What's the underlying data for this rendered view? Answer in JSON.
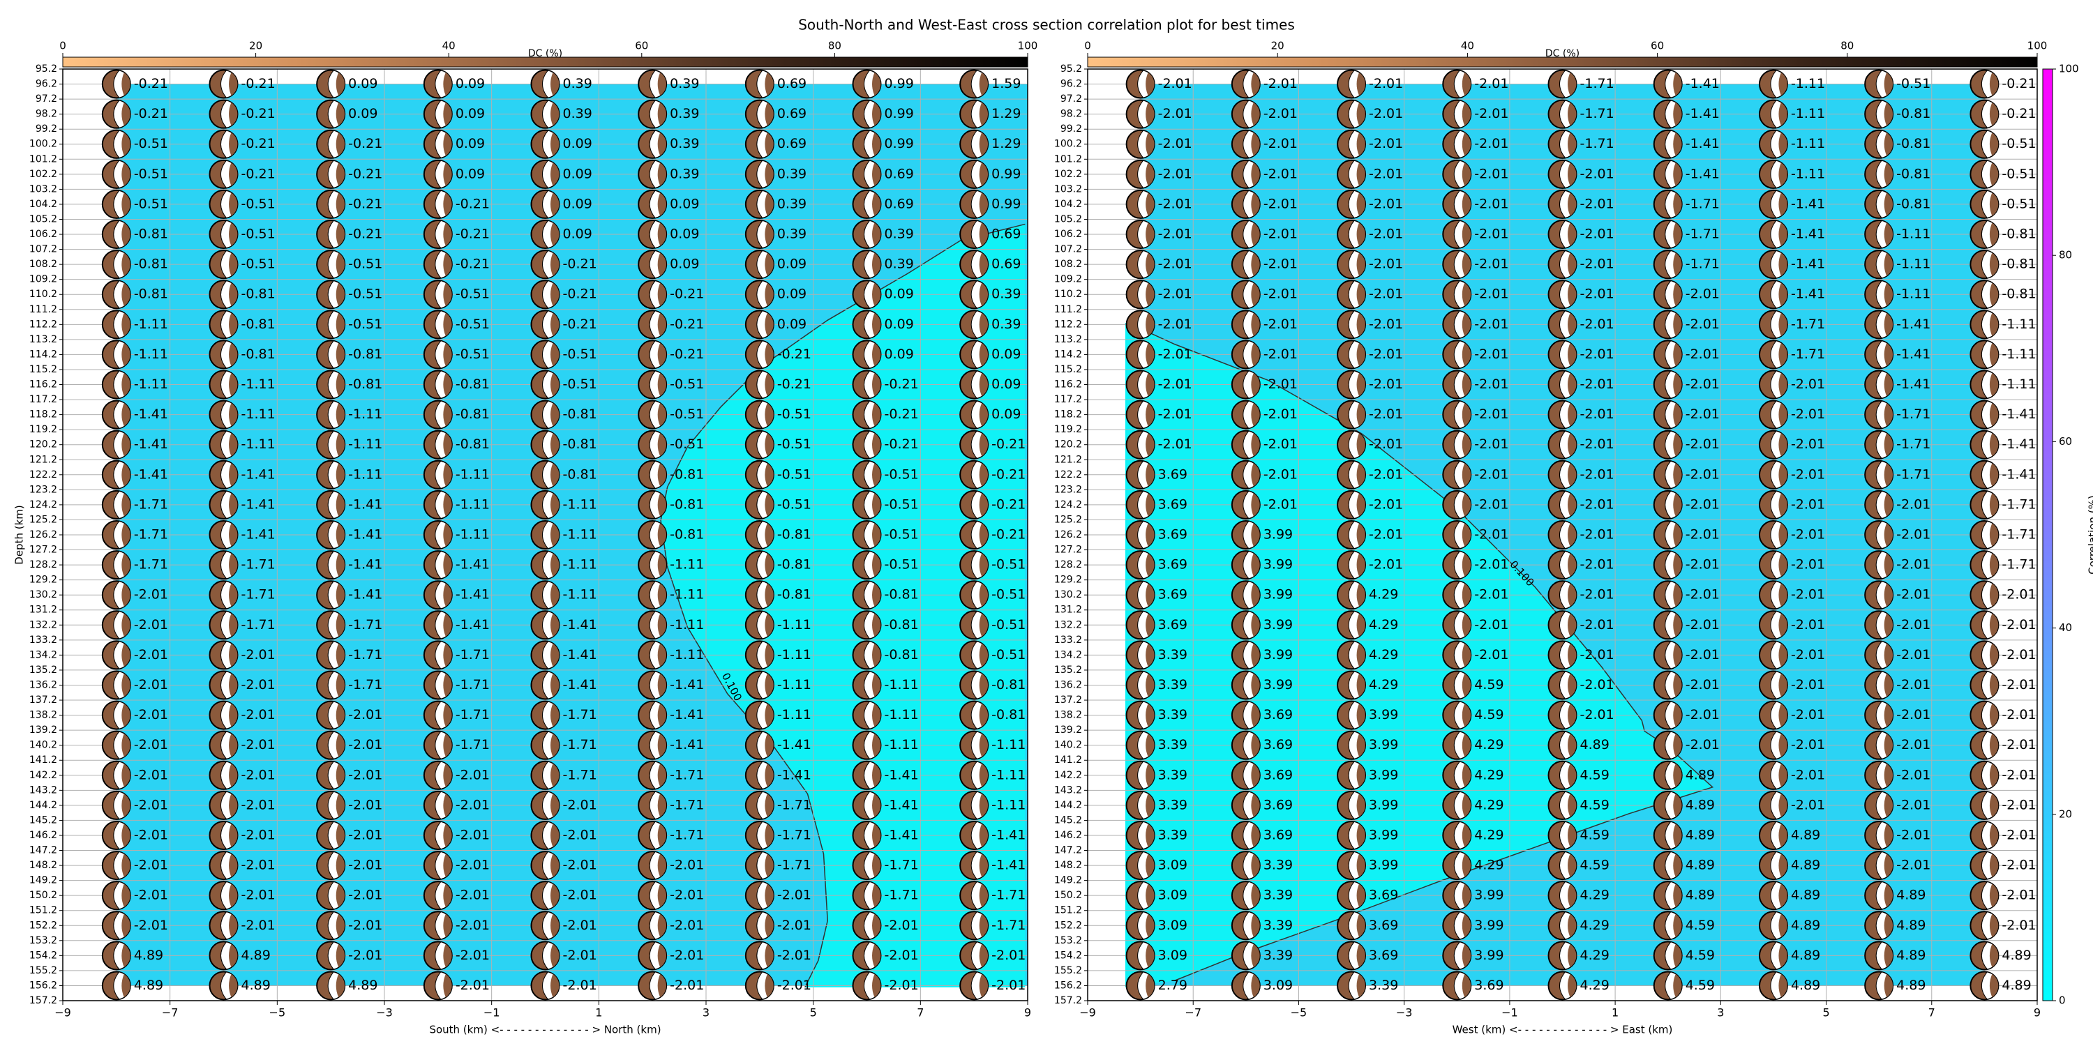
{
  "title": "South-North and West-East cross section correlation plot for best times",
  "chart_data": [
    {
      "type": "beachball",
      "xlabel": "South (km) <- - - - - - - - - - - - - > North (km)",
      "ylabel": "Depth (km)",
      "xlim": [
        -9,
        9
      ],
      "ylim": [
        157.2,
        95.2
      ],
      "xticks": [
        {
          "value": -9,
          "label": "−9"
        },
        {
          "value": -7,
          "label": "−7"
        },
        {
          "value": -5,
          "label": "−5"
        },
        {
          "value": -3,
          "label": "−3"
        },
        {
          "value": -1,
          "label": "−1"
        },
        1,
        3,
        5,
        7,
        9
      ],
      "yticks": [
        95.2,
        96.2,
        97.2,
        98.2,
        99.2,
        100.2,
        101.2,
        102.2,
        103.2,
        104.2,
        105.2,
        106.2,
        107.2,
        108.2,
        109.2,
        110.2,
        111.2,
        112.2,
        113.2,
        114.2,
        115.2,
        116.2,
        117.2,
        118.2,
        119.2,
        120.2,
        121.2,
        122.2,
        123.2,
        124.2,
        125.2,
        126.2,
        127.2,
        128.2,
        129.2,
        130.2,
        131.2,
        132.2,
        133.2,
        134.2,
        135.2,
        136.2,
        137.2,
        138.2,
        139.2,
        140.2,
        141.2,
        142.2,
        143.2,
        144.2,
        145.2,
        146.2,
        147.2,
        148.2,
        149.2,
        150.2,
        151.2,
        152.2,
        153.2,
        154.2,
        155.2,
        156.2,
        157.2
      ],
      "grid": true,
      "x": [
        -8,
        -6,
        -4,
        -2,
        0,
        2,
        4,
        6,
        8
      ],
      "depths": [
        96.2,
        98.2,
        100.2,
        102.2,
        104.2,
        106.2,
        108.2,
        110.2,
        112.2,
        114.2,
        116.2,
        118.2,
        120.2,
        122.2,
        124.2,
        126.2,
        128.2,
        130.2,
        132.2,
        134.2,
        136.2,
        138.2,
        140.2,
        142.2,
        144.2,
        146.2,
        148.2,
        150.2,
        152.2,
        154.2,
        156.2
      ],
      "values": [
        [
          -0.21,
          -0.21,
          0.09,
          0.09,
          0.39,
          0.39,
          0.69,
          0.99,
          1.59
        ],
        [
          -0.21,
          -0.21,
          0.09,
          0.09,
          0.39,
          0.39,
          0.69,
          0.99,
          1.29
        ],
        [
          -0.51,
          -0.21,
          -0.21,
          0.09,
          0.09,
          0.39,
          0.69,
          0.99,
          1.29
        ],
        [
          -0.51,
          -0.21,
          -0.21,
          0.09,
          0.09,
          0.39,
          0.39,
          0.69,
          0.99
        ],
        [
          -0.51,
          -0.51,
          -0.21,
          -0.21,
          0.09,
          0.09,
          0.39,
          0.69,
          0.99
        ],
        [
          -0.81,
          -0.51,
          -0.21,
          -0.21,
          0.09,
          0.09,
          0.39,
          0.39,
          0.69
        ],
        [
          -0.81,
          -0.51,
          -0.51,
          -0.21,
          -0.21,
          0.09,
          0.09,
          0.39,
          0.69
        ],
        [
          -0.81,
          -0.81,
          -0.51,
          -0.51,
          -0.21,
          -0.21,
          0.09,
          0.09,
          0.39
        ],
        [
          -1.11,
          -0.81,
          -0.51,
          -0.51,
          -0.21,
          -0.21,
          0.09,
          0.09,
          0.39
        ],
        [
          -1.11,
          -0.81,
          -0.81,
          -0.51,
          -0.51,
          -0.21,
          -0.21,
          0.09,
          0.09
        ],
        [
          -1.11,
          -1.11,
          -0.81,
          -0.81,
          -0.51,
          -0.51,
          -0.21,
          -0.21,
          0.09
        ],
        [
          -1.41,
          -1.11,
          -1.11,
          -0.81,
          -0.81,
          -0.51,
          -0.51,
          -0.21,
          0.09
        ],
        [
          -1.41,
          -1.11,
          -1.11,
          -0.81,
          -0.81,
          -0.51,
          -0.51,
          -0.21,
          -0.21
        ],
        [
          -1.41,
          -1.41,
          -1.11,
          -1.11,
          -0.81,
          -0.81,
          -0.51,
          -0.51,
          -0.21
        ],
        [
          -1.71,
          -1.41,
          -1.41,
          -1.11,
          -1.11,
          -0.81,
          -0.51,
          -0.51,
          -0.21
        ],
        [
          -1.71,
          -1.41,
          -1.41,
          -1.11,
          -1.11,
          -0.81,
          -0.81,
          -0.51,
          -0.21
        ],
        [
          -1.71,
          -1.71,
          -1.41,
          -1.41,
          -1.11,
          -1.11,
          -0.81,
          -0.51,
          -0.51
        ],
        [
          -2.01,
          -1.71,
          -1.41,
          -1.41,
          -1.11,
          -1.11,
          -0.81,
          -0.81,
          -0.51
        ],
        [
          -2.01,
          -1.71,
          -1.71,
          -1.41,
          -1.41,
          -1.11,
          -1.11,
          -0.81,
          -0.51
        ],
        [
          -2.01,
          -2.01,
          -1.71,
          -1.71,
          -1.41,
          -1.11,
          -1.11,
          -0.81,
          -0.51
        ],
        [
          -2.01,
          -2.01,
          -1.71,
          -1.71,
          -1.41,
          -1.41,
          -1.11,
          -1.11,
          -0.81
        ],
        [
          -2.01,
          -2.01,
          -2.01,
          -1.71,
          -1.71,
          -1.41,
          -1.11,
          -1.11,
          -0.81
        ],
        [
          -2.01,
          -2.01,
          -2.01,
          -1.71,
          -1.71,
          -1.41,
          -1.41,
          -1.11,
          -1.11
        ],
        [
          -2.01,
          -2.01,
          -2.01,
          -2.01,
          -1.71,
          -1.71,
          -1.41,
          -1.41,
          -1.11
        ],
        [
          -2.01,
          -2.01,
          -2.01,
          -2.01,
          -2.01,
          -1.71,
          -1.71,
          -1.41,
          -1.11
        ],
        [
          -2.01,
          -2.01,
          -2.01,
          -2.01,
          -2.01,
          -1.71,
          -1.71,
          -1.41,
          -1.41
        ],
        [
          -2.01,
          -2.01,
          -2.01,
          -2.01,
          -2.01,
          -2.01,
          -1.71,
          -1.71,
          -1.41
        ],
        [
          -2.01,
          -2.01,
          -2.01,
          -2.01,
          -2.01,
          -2.01,
          -2.01,
          -1.71,
          -1.71
        ],
        [
          -2.01,
          -2.01,
          -2.01,
          -2.01,
          -2.01,
          -2.01,
          -2.01,
          -2.01,
          -1.71
        ],
        [
          4.89,
          4.89,
          -2.01,
          -2.01,
          -2.01,
          -2.01,
          -2.01,
          -2.01,
          -2.01
        ],
        [
          4.89,
          4.89,
          4.89,
          -2.01,
          -2.01,
          -2.01,
          -2.01,
          -2.01,
          -2.01
        ]
      ],
      "contour_label": "0.100",
      "background_color": "#2bd3f4",
      "contour_fill_color": "#10f2f6",
      "mechanism_color": "#8b5a3c",
      "dc_colorbar": {
        "label": "DC (%)",
        "lim": [
          0,
          100
        ],
        "ticks": [
          0,
          20,
          40,
          60,
          80,
          100
        ],
        "colors": [
          "#ffc283",
          "#d2905c",
          "#8a5a3c",
          "#3a2418",
          "#000000"
        ]
      }
    },
    {
      "type": "beachball",
      "xlabel": "West (km) <- - - - - - - - - - - - - > East (km)",
      "xlim": [
        -9,
        9
      ],
      "ylim": [
        157.2,
        95.2
      ],
      "xticks": [
        {
          "value": -9,
          "label": "−9"
        },
        {
          "value": -7,
          "label": "−7"
        },
        {
          "value": -5,
          "label": "−5"
        },
        {
          "value": -3,
          "label": "−3"
        },
        {
          "value": -1,
          "label": "−1"
        },
        1,
        3,
        5,
        7,
        9
      ],
      "yticks": [
        95.2,
        96.2,
        97.2,
        98.2,
        99.2,
        100.2,
        101.2,
        102.2,
        103.2,
        104.2,
        105.2,
        106.2,
        107.2,
        108.2,
        109.2,
        110.2,
        111.2,
        112.2,
        113.2,
        114.2,
        115.2,
        116.2,
        117.2,
        118.2,
        119.2,
        120.2,
        121.2,
        122.2,
        123.2,
        124.2,
        125.2,
        126.2,
        127.2,
        128.2,
        129.2,
        130.2,
        131.2,
        132.2,
        133.2,
        134.2,
        135.2,
        136.2,
        137.2,
        138.2,
        139.2,
        140.2,
        141.2,
        142.2,
        143.2,
        144.2,
        145.2,
        146.2,
        147.2,
        148.2,
        149.2,
        150.2,
        151.2,
        152.2,
        153.2,
        154.2,
        155.2,
        156.2,
        157.2
      ],
      "grid": true,
      "x": [
        -8,
        -6,
        -4,
        -2,
        0,
        2,
        4,
        6,
        8
      ],
      "depths": [
        96.2,
        98.2,
        100.2,
        102.2,
        104.2,
        106.2,
        108.2,
        110.2,
        112.2,
        114.2,
        116.2,
        118.2,
        120.2,
        122.2,
        124.2,
        126.2,
        128.2,
        130.2,
        132.2,
        134.2,
        136.2,
        138.2,
        140.2,
        142.2,
        144.2,
        146.2,
        148.2,
        150.2,
        152.2,
        154.2,
        156.2
      ],
      "values": [
        [
          -2.01,
          -2.01,
          -2.01,
          -2.01,
          -1.71,
          -1.41,
          -1.11,
          -0.51,
          -0.21
        ],
        [
          -2.01,
          -2.01,
          -2.01,
          -2.01,
          -1.71,
          -1.41,
          -1.11,
          -0.81,
          -0.21
        ],
        [
          -2.01,
          -2.01,
          -2.01,
          -2.01,
          -1.71,
          -1.41,
          -1.11,
          -0.81,
          -0.51
        ],
        [
          -2.01,
          -2.01,
          -2.01,
          -2.01,
          -2.01,
          -1.41,
          -1.11,
          -0.81,
          -0.51
        ],
        [
          -2.01,
          -2.01,
          -2.01,
          -2.01,
          -2.01,
          -1.71,
          -1.41,
          -0.81,
          -0.51
        ],
        [
          -2.01,
          -2.01,
          -2.01,
          -2.01,
          -2.01,
          -1.71,
          -1.41,
          -1.11,
          -0.81
        ],
        [
          -2.01,
          -2.01,
          -2.01,
          -2.01,
          -2.01,
          -1.71,
          -1.41,
          -1.11,
          -0.81
        ],
        [
          -2.01,
          -2.01,
          -2.01,
          -2.01,
          -2.01,
          -2.01,
          -1.41,
          -1.11,
          -0.81
        ],
        [
          -2.01,
          -2.01,
          -2.01,
          -2.01,
          -2.01,
          -2.01,
          -1.71,
          -1.41,
          -1.11
        ],
        [
          -2.01,
          -2.01,
          -2.01,
          -2.01,
          -2.01,
          -2.01,
          -1.71,
          -1.41,
          -1.11
        ],
        [
          -2.01,
          -2.01,
          -2.01,
          -2.01,
          -2.01,
          -2.01,
          -2.01,
          -1.41,
          -1.11
        ],
        [
          -2.01,
          -2.01,
          -2.01,
          -2.01,
          -2.01,
          -2.01,
          -2.01,
          -1.71,
          -1.41
        ],
        [
          -2.01,
          -2.01,
          -2.01,
          -2.01,
          -2.01,
          -2.01,
          -2.01,
          -1.71,
          -1.41
        ],
        [
          3.69,
          -2.01,
          -2.01,
          -2.01,
          -2.01,
          -2.01,
          -2.01,
          -1.71,
          -1.41
        ],
        [
          3.69,
          -2.01,
          -2.01,
          -2.01,
          -2.01,
          -2.01,
          -2.01,
          -2.01,
          -1.71
        ],
        [
          3.69,
          3.99,
          -2.01,
          -2.01,
          -2.01,
          -2.01,
          -2.01,
          -2.01,
          -1.71
        ],
        [
          3.69,
          3.99,
          -2.01,
          -2.01,
          -2.01,
          -2.01,
          -2.01,
          -2.01,
          -1.71
        ],
        [
          3.69,
          3.99,
          4.29,
          -2.01,
          -2.01,
          -2.01,
          -2.01,
          -2.01,
          -2.01
        ],
        [
          3.69,
          3.99,
          4.29,
          -2.01,
          -2.01,
          -2.01,
          -2.01,
          -2.01,
          -2.01
        ],
        [
          3.39,
          3.99,
          4.29,
          -2.01,
          -2.01,
          -2.01,
          -2.01,
          -2.01,
          -2.01
        ],
        [
          3.39,
          3.99,
          4.29,
          4.59,
          -2.01,
          -2.01,
          -2.01,
          -2.01,
          -2.01
        ],
        [
          3.39,
          3.69,
          3.99,
          4.59,
          -2.01,
          -2.01,
          -2.01,
          -2.01,
          -2.01
        ],
        [
          3.39,
          3.69,
          3.99,
          4.29,
          4.89,
          -2.01,
          -2.01,
          -2.01,
          -2.01
        ],
        [
          3.39,
          3.69,
          3.99,
          4.29,
          4.59,
          4.89,
          -2.01,
          -2.01,
          -2.01
        ],
        [
          3.39,
          3.69,
          3.99,
          4.29,
          4.59,
          4.89,
          -2.01,
          -2.01,
          -2.01
        ],
        [
          3.39,
          3.69,
          3.99,
          4.29,
          4.59,
          4.89,
          4.89,
          -2.01,
          -2.01
        ],
        [
          3.09,
          3.39,
          3.99,
          4.29,
          4.59,
          4.89,
          4.89,
          -2.01,
          -2.01
        ],
        [
          3.09,
          3.39,
          3.69,
          3.99,
          4.29,
          4.89,
          4.89,
          4.89,
          -2.01
        ],
        [
          3.09,
          3.39,
          3.69,
          3.99,
          4.29,
          4.59,
          4.89,
          4.89,
          -2.01
        ],
        [
          3.09,
          3.39,
          3.69,
          3.99,
          4.29,
          4.59,
          4.89,
          4.89,
          4.89
        ],
        [
          2.79,
          3.09,
          3.39,
          3.69,
          4.29,
          4.59,
          4.89,
          4.89,
          4.89
        ]
      ],
      "contour_label": "0.100",
      "background_color": "#2bd3f4",
      "contour_fill_color": "#10f2f6",
      "mechanism_color": "#8b5a3c",
      "dc_colorbar": {
        "label": "DC (%)",
        "lim": [
          0,
          100
        ],
        "ticks": [
          0,
          20,
          40,
          60,
          80,
          100
        ],
        "colors": [
          "#ffc283",
          "#d2905c",
          "#8a5a3c",
          "#3a2418",
          "#000000"
        ]
      },
      "colorbar": {
        "label": "Correlation (%)",
        "lim": [
          0,
          100
        ],
        "ticks": [
          0,
          20,
          40,
          60,
          80,
          100
        ],
        "colors": [
          "#00ffff",
          "#ff00ff"
        ]
      }
    }
  ]
}
